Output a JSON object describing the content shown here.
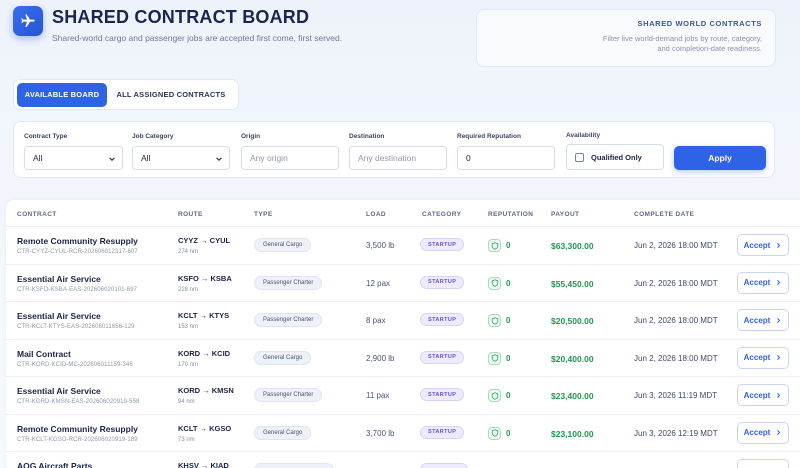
{
  "header": {
    "title": "SHARED CONTRACT BOARD",
    "subtitle": "Shared-world cargo and passenger jobs are accepted first come, first served."
  },
  "info_card": {
    "title": "SHARED WORLD CONTRACTS",
    "text": "Filter live world-demand jobs by route, category, and completion-date readiness."
  },
  "tabs": [
    {
      "label": "AVAILABLE BOARD",
      "active": true
    },
    {
      "label": "ALL ASSIGNED CONTRACTS",
      "active": false
    }
  ],
  "filters": {
    "contract_type": {
      "label": "Contract Type",
      "value": "All"
    },
    "job_category": {
      "label": "Job Category",
      "value": "All"
    },
    "origin": {
      "label": "Origin",
      "placeholder": "Any origin"
    },
    "destination": {
      "label": "Destination",
      "placeholder": "Any destination"
    },
    "reputation": {
      "label": "Required Reputation",
      "value": "0"
    },
    "availability": {
      "label": "Availability",
      "checkbox_label": "Qualified Only",
      "checked": false
    },
    "apply_label": "Apply"
  },
  "table": {
    "columns": [
      "CONTRACT",
      "ROUTE",
      "TYPE",
      "LOAD",
      "CATEGORY",
      "REPUTATION",
      "PAYOUT",
      "COMPLETE DATE"
    ],
    "accept_label": "Accept",
    "rows": [
      {
        "name": "Remote Community Resupply",
        "id": "CTR-CYYZ-CYUL-RCR-202606012317-607",
        "route": "CYYZ → CYUL",
        "distance": "274 nm",
        "type": "General Cargo",
        "load": "3,500 lb",
        "category": "STARTUP",
        "reputation": "0",
        "payout": "$63,300.00",
        "date": "Jun 2, 2026 18:00 MDT"
      },
      {
        "name": "Essential Air Service",
        "id": "CTR-KSFO-KSBA-EAS-202606020101-697",
        "route": "KSFO → KSBA",
        "distance": "228 nm",
        "type": "Passenger Charter",
        "load": "12 pax",
        "category": "STARTUP",
        "reputation": "0",
        "payout": "$55,450.00",
        "date": "Jun 2, 2026 18:00 MDT"
      },
      {
        "name": "Essential Air Service",
        "id": "CTR-KCLT-KTYS-EAS-202606011656-129",
        "route": "KCLT → KTYS",
        "distance": "153 nm",
        "type": "Passenger Charter",
        "load": "8 pax",
        "category": "STARTUP",
        "reputation": "0",
        "payout": "$20,500.00",
        "date": "Jun 2, 2026 18:00 MDT"
      },
      {
        "name": "Mail Contract",
        "id": "CTR-KORD-KCID-MC-202606011159-346",
        "route": "KORD → KCID",
        "distance": "170 nm",
        "type": "General Cargo",
        "load": "2,900 lb",
        "category": "STARTUP",
        "reputation": "0",
        "payout": "$20,400.00",
        "date": "Jun 2, 2026 18:00 MDT"
      },
      {
        "name": "Essential Air Service",
        "id": "CTR-KORD-KMSN-EAS-202606020919-558",
        "route": "KORD → KMSN",
        "distance": "94 nm",
        "type": "Passenger Charter",
        "load": "11 pax",
        "category": "STARTUP",
        "reputation": "0",
        "payout": "$23,400.00",
        "date": "Jun 3, 2026 11:19 MDT"
      },
      {
        "name": "Remote Community Resupply",
        "id": "CTR-KCLT-KGSO-RCR-202606020919-189",
        "route": "KCLT → KGSO",
        "distance": "73 nm",
        "type": "General Cargo",
        "load": "3,700 lb",
        "category": "STARTUP",
        "reputation": "0",
        "payout": "$23,100.00",
        "date": "Jun 3, 2026 12:19 MDT"
      },
      {
        "name": "AOG Aircraft Parts",
        "id": "",
        "route": "KHSV → KIAD",
        "distance": "",
        "type": "",
        "load": "",
        "category": "",
        "reputation": "",
        "payout": "",
        "date": ""
      }
    ]
  }
}
